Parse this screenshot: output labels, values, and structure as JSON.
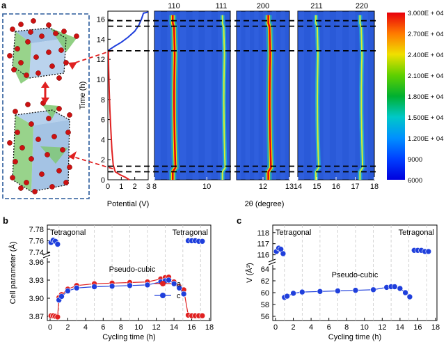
{
  "panel_labels": {
    "a": "a",
    "b": "b",
    "c": "c"
  },
  "structure": {
    "arrow_color": "#e02020",
    "box_color": "#2a5a9a",
    "octahedra_colors": {
      "blue": "#7ea9d8",
      "green": "#7ec86e",
      "oxygen": "#cc1111"
    }
  },
  "colorbar": {
    "ticks": [
      "3.000E + 04",
      "2.700E + 04",
      "2.400E + 04",
      "2.100E + 04",
      "1.800E + 04",
      "1.500E + 04",
      "1.200E + 04",
      "9000",
      "6000"
    ],
    "colors": [
      "#e8000b",
      "#ff7a00",
      "#f0e000",
      "#5fd000",
      "#00b030",
      "#00c8c8",
      "#0090ff",
      "#0040ff",
      "#0000dd"
    ]
  },
  "chart_data": [
    {
      "type": "line",
      "id": "potential-profile",
      "xlabel": "Potential (V)",
      "ylabel": "Time (h)",
      "xticks": [
        "0",
        "1",
        "2",
        "3"
      ],
      "yticks": [
        "0",
        "2",
        "4",
        "6",
        "8",
        "10",
        "12",
        "14",
        "16"
      ],
      "xlim": [
        0,
        3
      ],
      "ylim": [
        0,
        16.8
      ],
      "dashed_times": [
        0.8,
        1.35,
        12.85,
        15.3,
        15.85
      ],
      "series": [
        {
          "color": "#e02020",
          "x": [
            1.6,
            1.3,
            0.9,
            0.55,
            0.4,
            0.3,
            0.22,
            0.15,
            0.1,
            0.06,
            0.04
          ],
          "y": [
            0.0,
            0.25,
            0.5,
            0.8,
            1.5,
            3,
            5,
            7,
            9,
            11,
            12.8
          ]
        },
        {
          "color": "#1f3fdc",
          "x": [
            0.04,
            0.5,
            1.0,
            1.5,
            2.0,
            2.3,
            2.5,
            2.65,
            3.0
          ],
          "y": [
            12.9,
            13.3,
            13.7,
            14.2,
            14.8,
            15.4,
            16.0,
            16.6,
            16.7
          ]
        }
      ]
    },
    {
      "type": "heatmap",
      "id": "operando-xrd",
      "xlabel": "2θ (degree)",
      "peak_labels": [
        "110",
        "111",
        "200",
        "211",
        "220"
      ],
      "panels": [
        {
          "xlim": [
            8,
            10.9
          ],
          "xticks": [
            "8",
            "10"
          ],
          "peaks": [
            {
              "pos": 8.7,
              "intensity": "high"
            },
            {
              "pos": 10.6,
              "intensity": "medium"
            }
          ]
        },
        {
          "xlim": [
            11,
            13
          ],
          "xticks": [
            "12",
            "13"
          ],
          "peaks": [
            {
              "pos": 12.2,
              "intensity": "high"
            }
          ]
        },
        {
          "xlim": [
            14,
            18
          ],
          "xticks": [
            "14",
            "15",
            "16",
            "17",
            "18"
          ],
          "peaks": [
            {
              "pos": 14.95,
              "intensity": "medium"
            },
            {
              "pos": 17.25,
              "intensity": "medium"
            }
          ]
        }
      ]
    },
    {
      "type": "scatter",
      "id": "cell-parameter",
      "xlabel": "Cycling time (h)",
      "ylabel": "Cell parameter (Å)",
      "xticks": [
        "0",
        "2",
        "4",
        "6",
        "8",
        "10",
        "12",
        "14",
        "16",
        "18"
      ],
      "yticks_upper": [
        "7.78",
        "7.76",
        "7.74"
      ],
      "yticks_lower": [
        "3.96",
        "3.93",
        "3.90",
        "3.87"
      ],
      "annotations": [
        "Tetragonal",
        "Tetragonal",
        "Pseudo-cubic"
      ],
      "series": [
        {
          "name": "a",
          "color": "#e02020",
          "x": [
            0.1,
            0.35,
            0.6,
            0.85,
            1.0,
            1.3,
            2.0,
            3.0,
            5.0,
            7.0,
            9.0,
            11.0,
            12.5,
            13.0,
            13.4,
            14.0,
            14.6,
            15.1,
            15.6,
            16.0,
            16.4,
            16.8,
            17.2
          ],
          "y": [
            3.871,
            3.871,
            3.87,
            3.869,
            3.901,
            3.906,
            3.915,
            3.921,
            3.924,
            3.925,
            3.926,
            3.927,
            3.932,
            3.934,
            3.935,
            3.927,
            3.919,
            3.914,
            3.872,
            3.871,
            3.871,
            3.871,
            3.871
          ]
        },
        {
          "name": "c",
          "color": "#1f3fdc",
          "x": [
            0.1,
            0.35,
            0.6,
            0.85,
            1.0,
            1.3,
            2.0,
            3.0,
            5.0,
            7.0,
            9.0,
            11.0,
            12.5,
            13.0,
            13.4,
            14.0,
            14.6,
            15.1,
            15.6,
            16.0,
            16.4,
            16.8,
            17.2
          ],
          "y": [
            7.757,
            7.761,
            7.759,
            7.754,
            3.897,
            3.903,
            3.912,
            3.917,
            3.919,
            3.92,
            3.921,
            3.922,
            3.927,
            3.929,
            3.93,
            3.924,
            3.917,
            3.907,
            7.76,
            7.76,
            7.76,
            7.759,
            7.759
          ]
        }
      ]
    },
    {
      "type": "scatter",
      "id": "cell-volume",
      "xlabel": "Cycling time (h)",
      "ylabel": "V (Å³)",
      "xticks": [
        "0",
        "2",
        "4",
        "6",
        "8",
        "10",
        "12",
        "14",
        "16",
        "18"
      ],
      "yticks_upper": [
        "118",
        "117",
        "116"
      ],
      "yticks_lower": [
        "64",
        "62",
        "60",
        "58",
        "56"
      ],
      "annotations": [
        "Tetragonal",
        "Tetragonal",
        "Pseudo-cubic"
      ],
      "series": [
        {
          "color": "#1f3fdc",
          "x": [
            0.1,
            0.35,
            0.6,
            0.85,
            1.0,
            1.3,
            2.0,
            3.0,
            5.0,
            7.0,
            9.0,
            11.0,
            12.5,
            13.0,
            13.4,
            14.0,
            14.6,
            15.1,
            15.6,
            16.0,
            16.4,
            16.8,
            17.2
          ],
          "y": [
            116.3,
            116.6,
            116.5,
            116.1,
            59.2,
            59.4,
            59.9,
            60.1,
            60.2,
            60.3,
            60.4,
            60.5,
            60.9,
            61.0,
            61.0,
            60.7,
            60.0,
            59.3,
            116.4,
            116.4,
            116.4,
            116.3,
            116.3
          ]
        }
      ]
    }
  ]
}
